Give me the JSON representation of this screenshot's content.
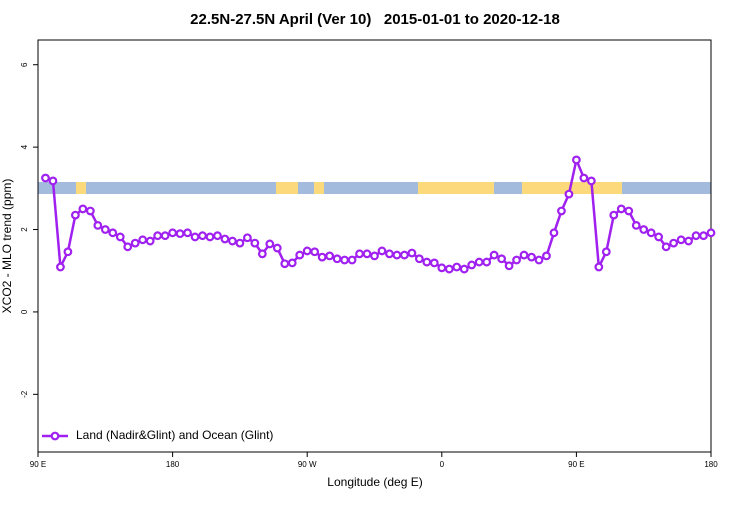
{
  "chart_data": {
    "type": "line",
    "title": "22.5N-27.5N April (Ver 10)   2015-01-01 to 2020-12-18",
    "xlabel": "Longitude (deg E)",
    "ylabel": "XCO2 - MLO trend (ppm)",
    "xlim": [
      90,
      540
    ],
    "ylim": [
      -3.4,
      6.6
    ],
    "xticks": [
      {
        "value": 90,
        "label": "90 E"
      },
      {
        "value": 180,
        "label": "180"
      },
      {
        "value": 270,
        "label": "90 W"
      },
      {
        "value": 360,
        "label": "0"
      },
      {
        "value": 450,
        "label": "90 E"
      },
      {
        "value": 540,
        "label": "180"
      }
    ],
    "yticks": [
      -2,
      0,
      2,
      4,
      6
    ],
    "legend": "bottom-left",
    "x": [
      95,
      100,
      105,
      110,
      115,
      120,
      125,
      130,
      135,
      140,
      145,
      150,
      155,
      160,
      165,
      170,
      175,
      180,
      185,
      190,
      195,
      200,
      205,
      210,
      215,
      220,
      225,
      230,
      235,
      240,
      245,
      250,
      255,
      260,
      265,
      270,
      275,
      280,
      285,
      290,
      295,
      300,
      305,
      310,
      315,
      320,
      325,
      330,
      335,
      340,
      345,
      350,
      355,
      360,
      365,
      370,
      375,
      380,
      385,
      390,
      395,
      400,
      405,
      410,
      415,
      420,
      425,
      430,
      435,
      440,
      445,
      450,
      455,
      460,
      465,
      470,
      475,
      480,
      485,
      490,
      495,
      500,
      505,
      510,
      515,
      520,
      525,
      530,
      535,
      540
    ],
    "series": [
      {
        "name": "Land (Nadir&Glint) and Ocean (Glint)",
        "color": "#a020f0",
        "values": [
          3.25,
          3.18,
          1.09,
          1.46,
          2.35,
          2.5,
          2.45,
          2.1,
          2.0,
          1.92,
          1.82,
          1.58,
          1.67,
          1.75,
          1.72,
          1.85,
          1.85,
          1.92,
          1.9,
          1.92,
          1.82,
          1.85,
          1.82,
          1.85,
          1.77,
          1.72,
          1.67,
          1.8,
          1.67,
          1.41,
          1.65,
          1.55,
          1.17,
          1.19,
          1.38,
          1.48,
          1.46,
          1.33,
          1.36,
          1.29,
          1.26,
          1.26,
          1.41,
          1.41,
          1.36,
          1.48,
          1.41,
          1.38,
          1.38,
          1.43,
          1.29,
          1.21,
          1.19,
          1.07,
          1.04,
          1.09,
          1.04,
          1.14,
          1.21,
          1.21,
          1.38,
          1.29,
          1.12,
          1.26,
          1.38,
          1.33,
          1.26,
          1.36,
          1.92,
          2.45,
          2.86,
          3.69,
          3.25,
          3.18,
          1.09,
          1.46,
          2.35,
          2.5,
          2.45,
          2.1,
          2.0,
          1.92,
          1.82,
          1.58,
          1.67,
          1.75,
          1.72,
          1.85,
          1.85,
          1.92
        ]
      }
    ]
  }
}
